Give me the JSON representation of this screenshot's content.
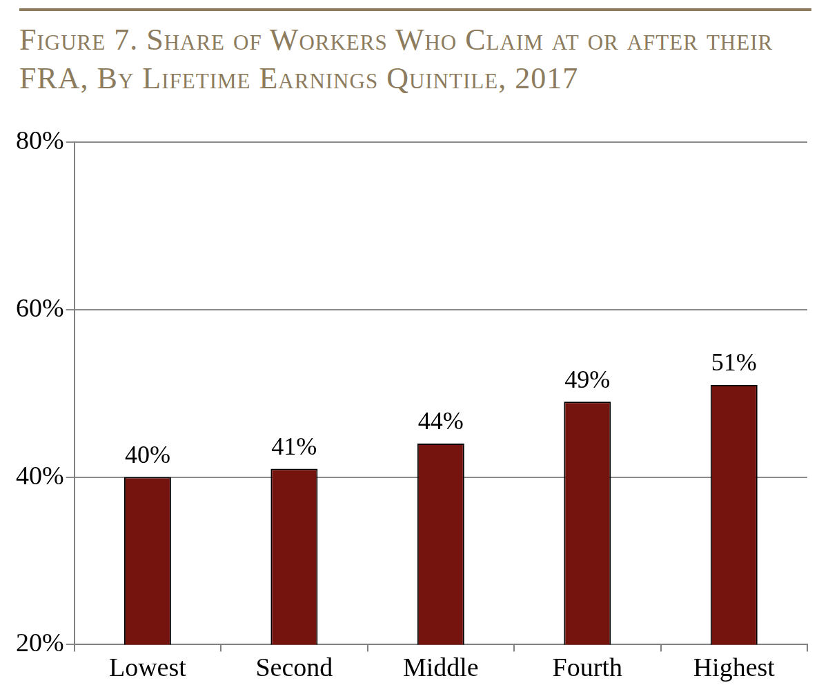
{
  "chart_data": {
    "type": "bar",
    "title": "Figure 7. Share of Workers Who Claim at or after their FRA, By Lifetime Earnings Quintile, 2017",
    "categories": [
      "Lowest",
      "Second",
      "Middle",
      "Fourth",
      "Highest"
    ],
    "values": [
      40,
      41,
      44,
      49,
      51
    ],
    "value_labels": [
      "40%",
      "41%",
      "44%",
      "49%",
      "51%"
    ],
    "color": "#75140f",
    "ylim": [
      20,
      80
    ],
    "yticks": [
      {
        "value": 20,
        "label": "20%"
      },
      {
        "value": 40,
        "label": "40%"
      },
      {
        "value": 60,
        "label": "60%"
      },
      {
        "value": 80,
        "label": "80%"
      }
    ],
    "grid": true,
    "data_labels": true
  }
}
